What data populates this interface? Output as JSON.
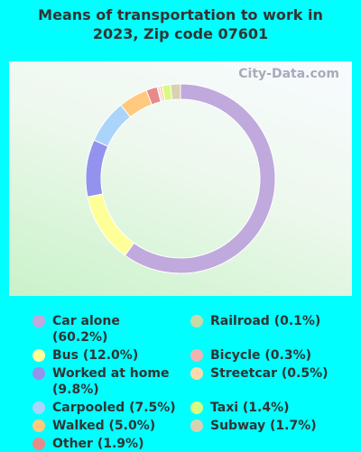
{
  "chart_data": {
    "type": "donut",
    "title": "Means of transportation to work in 2023, Zip code 07601",
    "watermark": "City-Data.com",
    "categories": [
      "Car alone",
      "Bus",
      "Worked at home",
      "Carpooled",
      "Walked",
      "Other",
      "Railroad",
      "Bicycle",
      "Streetcar",
      "Taxi",
      "Subway"
    ],
    "values": [
      60.2,
      12.0,
      9.8,
      7.5,
      5.0,
      1.9,
      0.1,
      0.3,
      0.5,
      1.4,
      1.7
    ],
    "value_labels": [
      "(60.2%)",
      "(12.0%)",
      "(9.8%)",
      "(7.5%)",
      "(5.0%)",
      "(1.9%)",
      "(0.1%)",
      "(0.3%)",
      "(0.5%)",
      "(1.4%)",
      "(1.7%)"
    ],
    "colors": [
      "#c0a9dc",
      "#ffff99",
      "#9393ee",
      "#aad4fa",
      "#ffc97e",
      "#e88a8a",
      "#c9d9a6",
      "#f2b2b2",
      "#fcd9aa",
      "#d9fa82",
      "#d9d1b1"
    ]
  }
}
